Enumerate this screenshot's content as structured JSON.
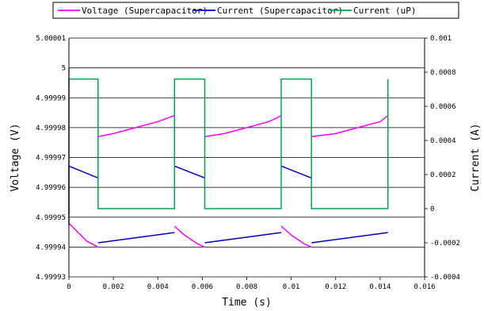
{
  "chart_data": {
    "type": "line",
    "xlabel": "Time (s)",
    "ylabel_left": "Voltage (V)",
    "ylabel_right": "Current (A)",
    "xlim": [
      0,
      0.016
    ],
    "ylim_left": [
      4.99993,
      5.00001
    ],
    "ylim_right": [
      -0.0004,
      0.001
    ],
    "x_ticks": [
      "0",
      "0.002",
      "0.004",
      "0.006",
      "0.008",
      "0.01",
      "0.012",
      "0.014",
      "0.016"
    ],
    "y_left_ticks": [
      "4.99993",
      "4.99994",
      "4.99995",
      "4.99996",
      "4.99997",
      "4.99998",
      "4.99999",
      "5",
      "5.00001"
    ],
    "y_right_ticks": [
      "-0.0004",
      "-0.0002",
      "0",
      "0.0002",
      "0.0004",
      "0.0006",
      "0.0008",
      "0.001"
    ],
    "grid": "horizontal",
    "legend_position": "top",
    "series": [
      {
        "name": "Voltage (Supercapacitor)",
        "axis": "left",
        "color": "#ff00ff",
        "segments": [
          [
            [
              0,
              5.0
            ],
            [
              0,
              4.999948
            ],
            [
              0.0004,
              4.999945
            ],
            [
              0.0008,
              4.999942
            ],
            [
              0.00131,
              4.99994
            ]
          ],
          [
            [
              0.00131,
              4.999977
            ],
            [
              0.002,
              4.999978
            ],
            [
              0.003,
              4.99998
            ],
            [
              0.004,
              4.999982
            ],
            [
              0.00475,
              4.999984
            ]
          ],
          [
            [
              0.00475,
              4.999947
            ],
            [
              0.0052,
              4.999944
            ],
            [
              0.0058,
              4.999941
            ],
            [
              0.00611,
              4.99994
            ]
          ],
          [
            [
              0.00611,
              4.999977
            ],
            [
              0.007,
              4.999978
            ],
            [
              0.008,
              4.99998
            ],
            [
              0.009,
              4.999982
            ],
            [
              0.00955,
              4.999984
            ]
          ],
          [
            [
              0.00955,
              4.999947
            ],
            [
              0.01,
              4.999944
            ],
            [
              0.0106,
              4.999941
            ],
            [
              0.01091,
              4.99994
            ]
          ],
          [
            [
              0.01091,
              4.999977
            ],
            [
              0.012,
              4.999978
            ],
            [
              0.013,
              4.99998
            ],
            [
              0.014,
              4.999982
            ],
            [
              0.01435,
              4.999984
            ]
          ]
        ]
      },
      {
        "name": "Current (Supercapacitor)",
        "axis": "right",
        "color": "#0000cc",
        "segments": [
          [
            [
              0,
              -3e-05
            ],
            [
              0,
              0.00025
            ],
            [
              0.00131,
              0.00018
            ]
          ],
          [
            [
              0.00131,
              -0.0002
            ],
            [
              0.00475,
              -0.00014
            ]
          ],
          [
            [
              0.00475,
              0.00025
            ],
            [
              0.00611,
              0.00018
            ]
          ],
          [
            [
              0.00611,
              -0.0002
            ],
            [
              0.00955,
              -0.00014
            ]
          ],
          [
            [
              0.00955,
              0.00025
            ],
            [
              0.01091,
              0.00018
            ]
          ],
          [
            [
              0.01091,
              -0.0002
            ],
            [
              0.01435,
              -0.00014
            ]
          ]
        ]
      },
      {
        "name": "Current (uP)",
        "axis": "right",
        "color": "#00a550",
        "segments": [
          [
            [
              0,
              -0.0001
            ],
            [
              0,
              0.00076
            ],
            [
              0.00131,
              0.00076
            ],
            [
              0.00131,
              0
            ],
            [
              0.00475,
              0
            ],
            [
              0.00475,
              0.00076
            ],
            [
              0.00611,
              0.00076
            ],
            [
              0.00611,
              0
            ],
            [
              0.00955,
              0
            ],
            [
              0.00955,
              0.00076
            ],
            [
              0.01091,
              0.00076
            ],
            [
              0.01091,
              0
            ],
            [
              0.01435,
              0
            ],
            [
              0.01435,
              0.00076
            ]
          ]
        ]
      }
    ]
  }
}
